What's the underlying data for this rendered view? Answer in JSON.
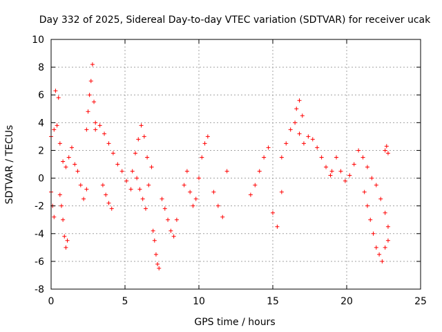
{
  "chart_data": {
    "type": "scatter",
    "title": "Day 332 of 2025, Sidereal Day-to-day VTEC variation (SDTVAR) for receiver ucak",
    "xlabel": "GPS time / hours",
    "ylabel": "SDTVAR / TECUs",
    "xlim": [
      0,
      25
    ],
    "ylim": [
      -8,
      10
    ],
    "xticks": [
      0,
      5,
      10,
      15,
      20,
      25
    ],
    "yticks": [
      -8,
      -6,
      -4,
      -2,
      0,
      2,
      4,
      6,
      8,
      10
    ],
    "grid": true,
    "marker": "+",
    "series_color": "#ff0000",
    "segments": [
      {
        "x": [
          0.0,
          0.2,
          0.4,
          0.6,
          0.8,
          1.0,
          1.2,
          1.4,
          1.6,
          1.8,
          2.0,
          2.2,
          2.4
        ],
        "y": [
          3.0,
          3.5,
          3.8,
          2.5,
          1.2,
          0.8,
          1.5,
          2.2,
          1.0,
          0.5,
          -0.5,
          -1.5,
          -0.8
        ]
      },
      {
        "x": [
          0.0,
          0.1,
          0.2,
          0.3,
          0.5
        ],
        "y": [
          -1.0,
          -2.0,
          -2.8,
          6.3,
          5.8
        ]
      },
      {
        "x": [
          0.6,
          0.7,
          0.8,
          0.9,
          1.0,
          1.1
        ],
        "y": [
          -1.2,
          -2.0,
          -3.0,
          -4.2,
          -5.0,
          -4.5
        ]
      },
      {
        "x": [
          2.4,
          2.5,
          2.6,
          2.7,
          2.8,
          2.9,
          3.0
        ],
        "y": [
          3.5,
          4.8,
          6.0,
          7.0,
          8.2,
          5.5,
          3.5
        ]
      },
      {
        "x": [
          3.0,
          3.3,
          3.6,
          3.9,
          4.2,
          4.5,
          4.8,
          5.1,
          5.4
        ],
        "y": [
          4.0,
          3.8,
          3.2,
          2.5,
          1.8,
          1.0,
          0.5,
          -0.2,
          -0.8
        ]
      },
      {
        "x": [
          3.5,
          3.7,
          3.9,
          4.1
        ],
        "y": [
          -0.5,
          -1.2,
          -1.8,
          -2.2
        ]
      },
      {
        "x": [
          5.5,
          5.7,
          5.9,
          6.1,
          6.3,
          6.5
        ],
        "y": [
          0.5,
          1.8,
          2.8,
          3.8,
          3.0,
          1.5
        ]
      },
      {
        "x": [
          5.8,
          6.0,
          6.2,
          6.4,
          6.6,
          6.8
        ],
        "y": [
          0.0,
          -0.8,
          -1.5,
          -2.2,
          -0.5,
          0.8
        ]
      },
      {
        "x": [
          6.9,
          7.0,
          7.1,
          7.2,
          7.3
        ],
        "y": [
          -3.8,
          -4.5,
          -5.5,
          -6.2,
          -6.5
        ]
      },
      {
        "x": [
          7.5,
          7.7,
          7.9,
          8.1,
          8.3,
          8.5
        ],
        "y": [
          -1.5,
          -2.2,
          -3.0,
          -3.8,
          -4.2,
          -3.0
        ]
      },
      {
        "x": [
          9.0,
          9.2,
          9.4,
          9.6,
          9.8,
          10.0,
          10.2,
          10.4,
          10.6
        ],
        "y": [
          -0.5,
          0.5,
          -1.0,
          -2.0,
          -1.5,
          0.0,
          1.5,
          2.5,
          3.0
        ]
      },
      {
        "x": [
          11.0,
          11.3,
          11.6,
          11.9
        ],
        "y": [
          -1.0,
          -2.0,
          -2.8,
          0.5
        ]
      },
      {
        "x": [
          13.5,
          13.8,
          14.1,
          14.4,
          14.7,
          15.0,
          15.3,
          15.6
        ],
        "y": [
          -1.2,
          -0.5,
          0.5,
          1.5,
          2.2,
          -2.5,
          -3.5,
          -1.0
        ]
      },
      {
        "x": [
          15.6,
          15.9,
          16.2,
          16.5,
          16.8,
          17.1,
          17.4,
          17.7,
          18.0,
          18.3,
          18.6,
          18.9
        ],
        "y": [
          1.5,
          2.5,
          3.5,
          4.0,
          3.2,
          2.5,
          3.0,
          2.8,
          2.2,
          1.5,
          0.8,
          0.2
        ]
      },
      {
        "x": [
          16.6,
          16.8,
          17.0
        ],
        "y": [
          5.0,
          5.6,
          4.5
        ]
      },
      {
        "x": [
          19.0,
          19.3,
          19.6,
          19.9,
          20.2,
          20.5,
          20.8,
          21.1,
          21.4,
          21.7,
          22.0,
          22.3,
          22.6,
          22.8
        ],
        "y": [
          0.5,
          1.5,
          0.5,
          -0.2,
          0.2,
          1.0,
          2.0,
          1.5,
          0.8,
          0.0,
          -0.5,
          -1.5,
          -2.5,
          -3.5
        ]
      },
      {
        "x": [
          21.2,
          21.4,
          21.6,
          21.8,
          22.0,
          22.2,
          22.4,
          22.6,
          22.8
        ],
        "y": [
          -1.0,
          -2.0,
          -3.0,
          -4.0,
          -5.0,
          -5.5,
          -6.0,
          -5.0,
          -4.5
        ]
      },
      {
        "x": [
          22.6,
          22.7,
          22.8
        ],
        "y": [
          2.0,
          2.3,
          1.8
        ]
      }
    ]
  }
}
